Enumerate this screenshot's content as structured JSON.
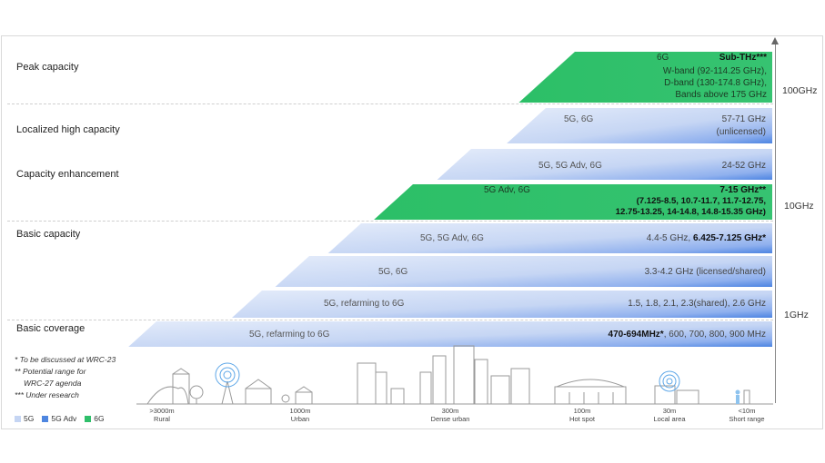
{
  "categories": {
    "peak": "Peak capacity",
    "localized": "Localized high capacity",
    "enhancement": "Capacity enhancement",
    "basic_capacity": "Basic capacity",
    "basic_coverage": "Basic coverage"
  },
  "axis_labels": {
    "high": "100GHz",
    "mid": "10GHz",
    "low": "1GHz"
  },
  "bands": [
    {
      "type": "6g",
      "tech": "6G",
      "head": "Sub-THz***",
      "lines": [
        "W-band (92-114.25 GHz),",
        "D-band (130-174.8 GHz),",
        "Bands above 175 GHz"
      ]
    },
    {
      "type": "5g",
      "tech": "5G, 6G",
      "lines": [
        "57-71 GHz",
        "(unlicensed)"
      ]
    },
    {
      "type": "5g",
      "tech": "5G, 5G Adv, 6G",
      "lines": [
        "24-52 GHz"
      ]
    },
    {
      "type": "6g",
      "tech": "5G Adv, 6G",
      "head": "7-15 GHz**",
      "lines": [
        "(7.125-8.5, 10.7-11.7, 11.7-12.75,",
        "12.75-13.25, 14-14.8, 14.8-15.35 GHz)"
      ]
    },
    {
      "type": "5g",
      "tech": "5G, 5G Adv, 6G",
      "lines": [
        "4.4-5 GHz,  ",
        "6.425-7.125 GHz*"
      ]
    },
    {
      "type": "5g",
      "tech": "5G, 6G",
      "lines": [
        "3.3-4.2 GHz (licensed/shared)"
      ]
    },
    {
      "type": "5g",
      "tech": "5G, refarming to 6G",
      "lines": [
        "1.5, 1.8, 2.1, 2.3(shared), 2.6 GHz"
      ]
    },
    {
      "type": "5g",
      "tech": "5G, refarming to 6G",
      "lines": [
        "470-694MHz*",
        ", 600, 700, 800, 900 MHz"
      ]
    }
  ],
  "notes": [
    "* To be discussed at WRC-23",
    "** Potential range for",
    "WRC-27 agenda",
    "*** Under research"
  ],
  "legend": [
    {
      "label": "5G",
      "color": "#c5d5f3"
    },
    {
      "label": "5G Adv",
      "color": "#4e86e0"
    },
    {
      "label": "6G",
      "color": "#2fbf6a"
    }
  ],
  "distances": [
    {
      "range": ">3000m",
      "label": "Rural"
    },
    {
      "range": "1000m",
      "label": "Urban"
    },
    {
      "range": "300m",
      "label": "Dense urban"
    },
    {
      "range": "100m",
      "label": "Hot spot"
    },
    {
      "range": "30m",
      "label": "Local area"
    },
    {
      "range": "<10m",
      "label": "Short range"
    }
  ]
}
